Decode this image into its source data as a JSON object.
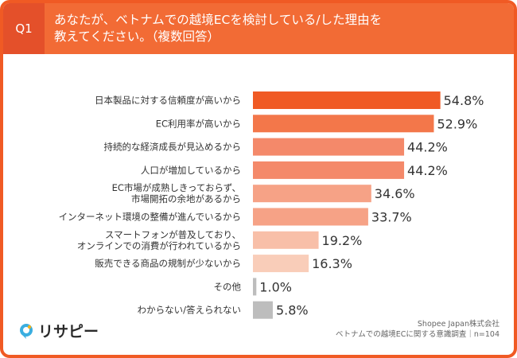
{
  "header": {
    "question_number": "Q1",
    "title_line1": "あなたが、ベトナムでの越境ECを検討している/した理由を",
    "title_line2": "教えてください。（複数回答）"
  },
  "chart_data": {
    "type": "bar",
    "orientation": "horizontal",
    "categories": [
      [
        "日本製品に対する信頼度が高いから"
      ],
      [
        "EC利用率が高いから"
      ],
      [
        "持続的な経済成長が見込めるから"
      ],
      [
        "人口が増加しているから"
      ],
      [
        "EC市場が成熟しきっておらず、",
        "市場開拓の余地があるから"
      ],
      [
        "インターネット環境の整備が進んでいるから"
      ],
      [
        "スマートフォンが普及しており、",
        "オンラインでの消費が行われているから"
      ],
      [
        "販売できる商品の規制が少ないから"
      ],
      [
        "その他"
      ],
      [
        "わからない/答えられない"
      ]
    ],
    "values": [
      54.8,
      52.9,
      44.2,
      44.2,
      34.6,
      33.7,
      19.2,
      16.3,
      1.0,
      5.8
    ],
    "value_labels": [
      "54.8%",
      "52.9%",
      "44.2%",
      "44.2%",
      "34.6%",
      "33.7%",
      "19.2%",
      "16.3%",
      "1.0%",
      "5.8%"
    ],
    "bar_colors": [
      "#f05a24",
      "#f3774a",
      "#f4896a",
      "#f4896a",
      "#f6a286",
      "#f6a286",
      "#f8bfa8",
      "#f9cdb9",
      "#bdbdbd",
      "#bdbdbd"
    ],
    "xlim": [
      0,
      60
    ],
    "grid": false,
    "legend": "none"
  },
  "logo": {
    "text": "リサピー"
  },
  "source": {
    "line1": "Shopee Japan株式会社",
    "line2": "ベトナムでの越境ECに関する意識調査｜n=104"
  }
}
